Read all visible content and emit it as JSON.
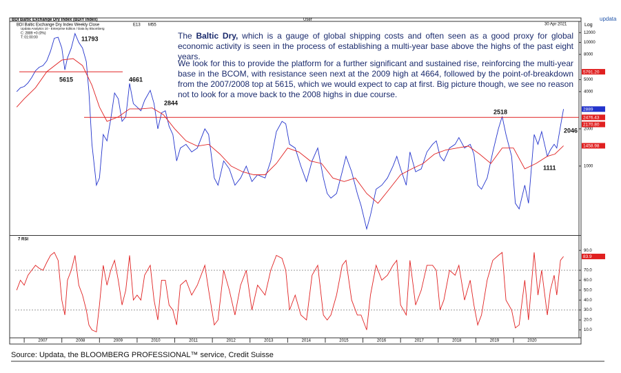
{
  "header": {
    "title": "BDI Baltic Exchange Dry Index (BDIY Index)",
    "user": "User",
    "date": "30 Apr 2021",
    "brand": "updata",
    "scale": "Log",
    "legend": [
      "BDI Baltic Exchange Dry Index Weekly Close",
      "E13",
      "M55"
    ],
    "info": [
      "Updata Analytics 10 - Enterprise Edition / Data by Bloomberg",
      "C: 2889 +0 (0%)",
      "T: 01:00:00"
    ]
  },
  "commentary": {
    "p1": [
      "The ",
      "Baltic Dry,",
      " which is a gauge of global shipping costs and often seen as a good proxy for global economic activity is seen in the process of establishing a multi-year base above the highs of the past eight years."
    ],
    "p2": "We look for this to provide the platform for a further significant and sustained rise, reinforcing the multi-year base in the BCOM, with resistance seen next at the 2009 high at 4664, followed by the point-of-breakdown from the 2007/2008 top at 5615, which we would expect to cap at first. Big picture though, we see no reason not to look for a move back to the 2008 highs in due course."
  },
  "footer": "Source: Updata, the BLOOMBERG PROFESSIONAL™ service, Credit Suisse",
  "chart_data": [
    {
      "type": "line",
      "log_scale": true,
      "xlim": [
        2006.76,
        2021.74
      ],
      "ylim": [
        280,
        14800
      ],
      "xticks": [
        2007,
        2008,
        2009,
        2010,
        2011,
        2012,
        2013,
        2014,
        2015,
        2016,
        2017,
        2018,
        2019,
        2020
      ],
      "yticks": [
        12000,
        10000,
        8000,
        5000,
        4000,
        2000,
        1000
      ],
      "series": [
        {
          "name": "BDI Baltic Exchange Dry Index Weekly Close",
          "color": "#2233cc",
          "x": [
            2006.8,
            2006.9,
            2007.0,
            2007.1,
            2007.2,
            2007.3,
            2007.4,
            2007.5,
            2007.6,
            2007.7,
            2007.8,
            2007.9,
            2008.0,
            2008.08,
            2008.15,
            2008.25,
            2008.35,
            2008.45,
            2008.55,
            2008.65,
            2008.72,
            2008.8,
            2008.92,
            2009.0,
            2009.1,
            2009.2,
            2009.3,
            2009.4,
            2009.5,
            2009.6,
            2009.7,
            2009.8,
            2009.9,
            2010.0,
            2010.1,
            2010.2,
            2010.35,
            2010.45,
            2010.55,
            2010.65,
            2010.75,
            2010.85,
            2010.95,
            2011.05,
            2011.15,
            2011.3,
            2011.45,
            2011.6,
            2011.8,
            2011.9,
            2012.05,
            2012.15,
            2012.3,
            2012.45,
            2012.6,
            2012.75,
            2012.9,
            2013.05,
            2013.2,
            2013.4,
            2013.55,
            2013.7,
            2013.85,
            2013.95,
            2014.05,
            2014.2,
            2014.35,
            2014.5,
            2014.65,
            2014.8,
            2014.95,
            2015.05,
            2015.15,
            2015.3,
            2015.45,
            2015.55,
            2015.7,
            2015.85,
            2015.95,
            2016.1,
            2016.2,
            2016.35,
            2016.5,
            2016.65,
            2016.8,
            2016.9,
            2017.0,
            2017.15,
            2017.25,
            2017.4,
            2017.55,
            2017.7,
            2017.85,
            2017.95,
            2018.05,
            2018.15,
            2018.3,
            2018.45,
            2018.55,
            2018.7,
            2018.85,
            2018.95,
            2019.05,
            2019.15,
            2019.3,
            2019.45,
            2019.6,
            2019.7,
            2019.8,
            2019.95,
            2020.05,
            2020.15,
            2020.3,
            2020.4,
            2020.55,
            2020.65,
            2020.75,
            2020.9,
            2020.98,
            2021.08,
            2021.15,
            2021.25,
            2021.33
          ],
          "values": [
            4000,
            4300,
            4400,
            4700,
            5200,
            5900,
            6300,
            6500,
            7100,
            8500,
            10800,
            11000,
            9000,
            6000,
            7500,
            9000,
            11793,
            10000,
            9000,
            7000,
            4000,
            1500,
            700,
            800,
            1800,
            1600,
            2400,
            3900,
            3500,
            2300,
            2500,
            4661,
            3200,
            3000,
            2800,
            3400,
            4100,
            3200,
            2000,
            2700,
            2800,
            2100,
            1800,
            1100,
            1400,
            1500,
            1300,
            1400,
            2000,
            1800,
            800,
            700,
            1100,
            950,
            700,
            800,
            1000,
            750,
            850,
            800,
            1100,
            1900,
            2300,
            2200,
            1500,
            1400,
            1000,
            750,
            1100,
            1400,
            800,
            600,
            550,
            600,
            900,
            1200,
            900,
            600,
            480,
            310,
            400,
            650,
            700,
            800,
            1000,
            1200,
            950,
            700,
            1300,
            900,
            950,
            1300,
            1500,
            1600,
            1200,
            1100,
            1400,
            1500,
            1700,
            1400,
            1500,
            1250,
            700,
            650,
            800,
            1300,
            2000,
            2518,
            1800,
            1200,
            500,
            450,
            700,
            500,
            1800,
            1500,
            1900,
            1200,
            1350,
            1500,
            1400,
            2100,
            2889
          ]
        },
        {
          "name": "M55",
          "color": "#e02020",
          "x": [
            2006.8,
            2007.0,
            2007.3,
            2007.6,
            2008.0,
            2008.3,
            2008.55,
            2008.8,
            2009.0,
            2009.2,
            2009.5,
            2009.8,
            2010.1,
            2010.4,
            2010.7,
            2011.0,
            2011.3,
            2011.6,
            2011.9,
            2012.2,
            2012.5,
            2012.8,
            2013.1,
            2013.4,
            2013.7,
            2014.0,
            2014.3,
            2014.6,
            2014.9,
            2015.2,
            2015.5,
            2015.8,
            2016.1,
            2016.4,
            2016.7,
            2017.0,
            2017.3,
            2017.6,
            2017.9,
            2018.2,
            2018.5,
            2018.8,
            2019.1,
            2019.4,
            2019.7,
            2020.0,
            2020.3,
            2020.6,
            2020.9,
            2021.1,
            2021.33
          ],
          "values": [
            3000,
            3500,
            4300,
            5800,
            7200,
            7400,
            6500,
            4500,
            3000,
            2300,
            2500,
            2900,
            2900,
            2950,
            2600,
            2000,
            1600,
            1450,
            1500,
            1250,
            1000,
            900,
            850,
            850,
            1050,
            1400,
            1300,
            1100,
            1050,
            800,
            750,
            800,
            600,
            500,
            650,
            850,
            950,
            1050,
            1250,
            1350,
            1400,
            1450,
            1250,
            1050,
            1400,
            1400,
            950,
            1050,
            1200,
            1250,
            1458.98
          ]
        }
      ],
      "price_tags": [
        {
          "value": 5791.2,
          "label": "5791.20",
          "color": "#e02020"
        },
        {
          "value": 2889,
          "label": "2889",
          "color": "#2233cc"
        },
        {
          "value": 2476.43,
          "label": "2476.43",
          "color": "#e02020"
        },
        {
          "value": 2170.8,
          "label": "2170.80",
          "color": "#e02020"
        },
        {
          "value": 1458.98,
          "label": "1458.98",
          "color": "#e02020"
        }
      ],
      "annotations": [
        "11793",
        "5615",
        "4661",
        "2844",
        "2518",
        "2046",
        "1111"
      ]
    },
    {
      "type": "line",
      "title": "7 RSI",
      "xlim": [
        2006.76,
        2021.74
      ],
      "ylim": [
        2,
        104
      ],
      "yticks": [
        {
          "value": 90,
          "label": "90.0"
        },
        {
          "value": 70,
          "label": "70.0"
        },
        {
          "value": 60,
          "label": "60.0"
        },
        {
          "value": 50,
          "label": "50.0"
        },
        {
          "value": 40,
          "label": "40.0"
        },
        {
          "value": 30,
          "label": "30.0"
        },
        {
          "value": 20,
          "label": "20.0"
        },
        {
          "value": 10,
          "label": "10.0"
        }
      ],
      "guide_levels": [
        70,
        30
      ],
      "series": [
        {
          "name": "7 RSI",
          "color": "#e02020",
          "x": [
            2006.8,
            2006.9,
            2007.0,
            2007.1,
            2007.2,
            2007.3,
            2007.4,
            2007.5,
            2007.6,
            2007.7,
            2007.8,
            2007.9,
            2008.0,
            2008.08,
            2008.15,
            2008.25,
            2008.35,
            2008.45,
            2008.55,
            2008.65,
            2008.72,
            2008.8,
            2008.92,
            2009.0,
            2009.1,
            2009.2,
            2009.3,
            2009.4,
            2009.5,
            2009.6,
            2009.7,
            2009.8,
            2009.9,
            2010.0,
            2010.1,
            2010.2,
            2010.35,
            2010.45,
            2010.55,
            2010.65,
            2010.75,
            2010.85,
            2010.95,
            2011.05,
            2011.15,
            2011.3,
            2011.45,
            2011.6,
            2011.8,
            2011.9,
            2012.05,
            2012.15,
            2012.3,
            2012.45,
            2012.6,
            2012.75,
            2012.9,
            2013.05,
            2013.2,
            2013.4,
            2013.55,
            2013.7,
            2013.85,
            2013.95,
            2014.05,
            2014.2,
            2014.35,
            2014.5,
            2014.65,
            2014.8,
            2014.95,
            2015.05,
            2015.15,
            2015.3,
            2015.45,
            2015.55,
            2015.7,
            2015.85,
            2015.95,
            2016.1,
            2016.2,
            2016.35,
            2016.5,
            2016.65,
            2016.8,
            2016.9,
            2017.0,
            2017.15,
            2017.25,
            2017.4,
            2017.55,
            2017.7,
            2017.85,
            2017.95,
            2018.05,
            2018.15,
            2018.3,
            2018.45,
            2018.55,
            2018.7,
            2018.85,
            2018.95,
            2019.05,
            2019.15,
            2019.3,
            2019.45,
            2019.6,
            2019.7,
            2019.8,
            2019.95,
            2020.05,
            2020.15,
            2020.3,
            2020.4,
            2020.55,
            2020.65,
            2020.75,
            2020.9,
            2020.98,
            2021.08,
            2021.15,
            2021.25,
            2021.33
          ],
          "values": [
            50,
            60,
            55,
            65,
            70,
            75,
            72,
            70,
            78,
            85,
            88,
            80,
            40,
            25,
            60,
            70,
            85,
            55,
            45,
            30,
            15,
            10,
            8,
            35,
            75,
            55,
            70,
            80,
            60,
            35,
            50,
            85,
            40,
            45,
            40,
            65,
            75,
            40,
            20,
            60,
            60,
            35,
            30,
            15,
            55,
            60,
            45,
            55,
            75,
            50,
            15,
            20,
            70,
            50,
            25,
            55,
            70,
            30,
            55,
            45,
            70,
            85,
            82,
            70,
            30,
            45,
            25,
            20,
            65,
            75,
            25,
            20,
            25,
            45,
            75,
            80,
            40,
            25,
            25,
            10,
            45,
            75,
            60,
            65,
            75,
            80,
            35,
            25,
            80,
            35,
            50,
            75,
            75,
            70,
            30,
            40,
            70,
            65,
            75,
            40,
            60,
            35,
            15,
            25,
            60,
            80,
            85,
            88,
            40,
            30,
            12,
            15,
            60,
            20,
            88,
            45,
            70,
            25,
            50,
            65,
            45,
            80,
            83.9
          ]
        }
      ],
      "price_tags": [
        {
          "value": 83.9,
          "label": "83.9",
          "color": "#e02020"
        }
      ]
    }
  ]
}
